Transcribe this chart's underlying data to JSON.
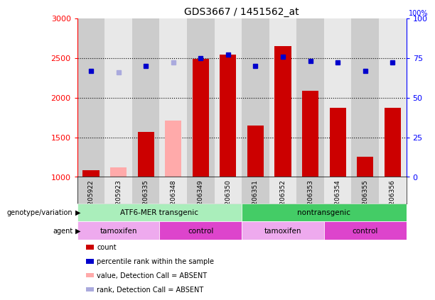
{
  "title": "GDS3667 / 1451562_at",
  "samples": [
    "GSM205922",
    "GSM205923",
    "GSM206335",
    "GSM206348",
    "GSM206349",
    "GSM206350",
    "GSM206351",
    "GSM206352",
    "GSM206353",
    "GSM206354",
    "GSM206355",
    "GSM206356"
  ],
  "counts": [
    1080,
    1120,
    1570,
    1710,
    2490,
    2540,
    1650,
    2650,
    2090,
    1870,
    1250,
    1870
  ],
  "absent_mask": [
    false,
    true,
    false,
    true,
    false,
    false,
    false,
    false,
    false,
    false,
    false,
    false
  ],
  "percentile_ranks": [
    67,
    66,
    70,
    72,
    75,
    77,
    70,
    76,
    73,
    72,
    67,
    72
  ],
  "rank_absent_mask": [
    false,
    true,
    false,
    true,
    false,
    false,
    false,
    false,
    false,
    false,
    false,
    false
  ],
  "ylim_left": [
    1000,
    3000
  ],
  "ylim_right": [
    0,
    100
  ],
  "yticks_left": [
    1000,
    1500,
    2000,
    2500,
    3000
  ],
  "yticks_right": [
    0,
    25,
    50,
    75,
    100
  ],
  "bar_color_present": "#cc0000",
  "bar_color_absent": "#ffaaaa",
  "dot_color_present": "#0000cc",
  "dot_color_absent": "#aaaadd",
  "bar_width": 0.6,
  "genotype_groups": [
    {
      "label": "ATF6-MER transgenic",
      "start": 0,
      "end": 6,
      "color": "#aaeebb"
    },
    {
      "label": "nontransgenic",
      "start": 6,
      "end": 12,
      "color": "#44cc66"
    }
  ],
  "agent_groups": [
    {
      "label": "tamoxifen",
      "start": 0,
      "end": 3,
      "color": "#eeaaee"
    },
    {
      "label": "control",
      "start": 3,
      "end": 6,
      "color": "#dd44cc"
    },
    {
      "label": "tamoxifen",
      "start": 6,
      "end": 9,
      "color": "#eeaaee"
    },
    {
      "label": "control",
      "start": 9,
      "end": 12,
      "color": "#dd44cc"
    }
  ],
  "legend_items": [
    {
      "label": "count",
      "color": "#cc0000"
    },
    {
      "label": "percentile rank within the sample",
      "color": "#0000cc"
    },
    {
      "label": "value, Detection Call = ABSENT",
      "color": "#ffaaaa"
    },
    {
      "label": "rank, Detection Call = ABSENT",
      "color": "#aaaadd"
    }
  ],
  "genotype_label": "genotype/variation",
  "agent_label": "agent",
  "col_bg_odd": "#cccccc",
  "col_bg_even": "#e8e8e8"
}
